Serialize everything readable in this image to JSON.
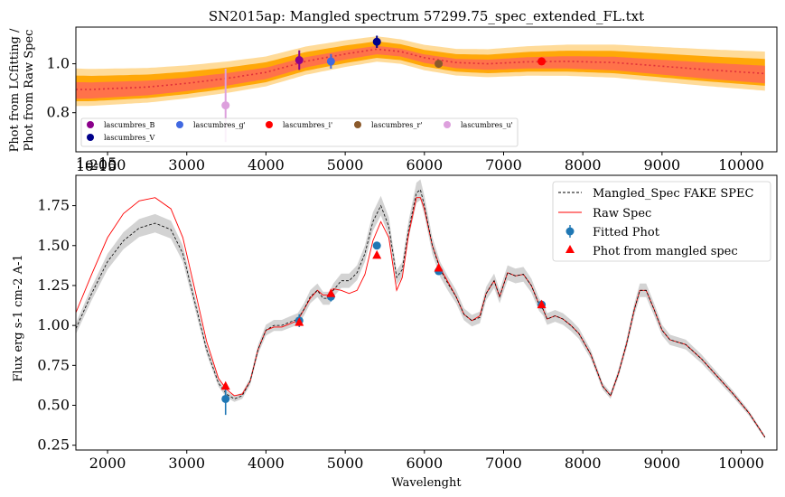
{
  "chart_data": [
    {
      "type": "line",
      "title": "SN2015ap: Mangled spectrum 57299.75_spec_extended_FL.txt",
      "ylabel_line1": "Phot from LCfitting /",
      "ylabel_line2": "Phot from Raw Spec",
      "xlim": [
        1600,
        10450
      ],
      "ylim": [
        0.64,
        1.15
      ],
      "xticks": [
        2000,
        3000,
        4000,
        5000,
        6000,
        7000,
        8000,
        9000,
        10000
      ],
      "yticks": [
        0.8,
        1.0
      ],
      "x_offset_label": "1e-15",
      "colors": {
        "band_outer": "#FFD27F",
        "band_mid": "#FFA500",
        "band_red": "#FF6060",
        "curve": "#E0303A"
      },
      "ratio_curve": {
        "x": [
          1800,
          2500,
          3000,
          3500,
          4000,
          4500,
          5000,
          5400,
          5700,
          6000,
          6400,
          6800,
          7300,
          7800,
          8400,
          9000,
          9600,
          10300
        ],
        "y": [
          0.895,
          0.905,
          0.92,
          0.94,
          0.965,
          1.01,
          1.04,
          1.06,
          1.05,
          1.025,
          1.005,
          1.0,
          1.008,
          1.01,
          1.005,
          0.99,
          0.975,
          0.96
        ]
      },
      "points": [
        {
          "name": "lascumbres_B",
          "color": "#8B008B",
          "x": 4420,
          "y": 1.015,
          "err": 0.04
        },
        {
          "name": "lascumbres_V",
          "color": "#00008B",
          "x": 5400,
          "y": 1.09,
          "err": 0.025
        },
        {
          "name": "lascumbres_g'",
          "color": "#4169E1",
          "x": 4820,
          "y": 1.01,
          "err": 0.03
        },
        {
          "name": "lascumbres_i'",
          "color": "#FF0000",
          "x": 7480,
          "y": 1.01,
          "err": 0.008
        },
        {
          "name": "lascumbres_r'",
          "color": "#8B5A2B",
          "x": 6180,
          "y": 1.0,
          "err": 0.008
        },
        {
          "name": "lascumbres_u'",
          "color": "#DDA0DD",
          "x": 3490,
          "y": 0.83,
          "err": 0.15
        }
      ]
    },
    {
      "type": "line",
      "xlabel": "Wavelenght",
      "ylabel": "Flux erg s-1 cm-2 A-1",
      "xlim": [
        1600,
        10450
      ],
      "ylim": [
        0.22,
        1.94
      ],
      "xticks": [
        2000,
        3000,
        4000,
        5000,
        6000,
        7000,
        8000,
        9000,
        10000
      ],
      "yticks": [
        0.25,
        0.5,
        0.75,
        1.0,
        1.25,
        1.5,
        1.75
      ],
      "x_offset_label": "1e-15",
      "legend": [
        "Mangled_Spec FAKE SPEC",
        "Raw Spec",
        "Fitted Phot",
        "Phot from mangled spec"
      ],
      "mangled": {
        "x": [
          1600,
          1800,
          2000,
          2200,
          2400,
          2600,
          2800,
          2950,
          3100,
          3250,
          3400,
          3500,
          3600,
          3700,
          3800,
          3900,
          4000,
          4100,
          4200,
          4300,
          4400,
          4480,
          4560,
          4650,
          4720,
          4800,
          4850,
          4950,
          5050,
          5150,
          5250,
          5350,
          5450,
          5550,
          5650,
          5720,
          5800,
          5900,
          5950,
          6000,
          6100,
          6200,
          6300,
          6400,
          6500,
          6600,
          6700,
          6780,
          6880,
          6950,
          7050,
          7150,
          7250,
          7350,
          7450,
          7500,
          7550,
          7650,
          7750,
          7850,
          7950,
          8100,
          8250,
          8350,
          8450,
          8550,
          8650,
          8720,
          8800,
          8900,
          9000,
          9100,
          9300,
          9500,
          9700,
          9900,
          10100,
          10300
        ],
        "y": [
          0.98,
          1.2,
          1.4,
          1.53,
          1.61,
          1.64,
          1.6,
          1.45,
          1.15,
          0.85,
          0.64,
          0.57,
          0.54,
          0.56,
          0.65,
          0.85,
          0.97,
          1.0,
          1.0,
          1.02,
          1.04,
          1.1,
          1.18,
          1.22,
          1.17,
          1.17,
          1.22,
          1.28,
          1.28,
          1.33,
          1.45,
          1.65,
          1.75,
          1.62,
          1.3,
          1.35,
          1.6,
          1.83,
          1.85,
          1.75,
          1.5,
          1.35,
          1.26,
          1.18,
          1.07,
          1.03,
          1.05,
          1.2,
          1.28,
          1.18,
          1.33,
          1.31,
          1.32,
          1.25,
          1.13,
          1.1,
          1.04,
          1.06,
          1.04,
          1.0,
          0.95,
          0.82,
          0.62,
          0.56,
          0.7,
          0.88,
          1.1,
          1.22,
          1.22,
          1.1,
          0.97,
          0.91,
          0.88,
          0.79,
          0.68,
          0.57,
          0.45,
          0.3
        ]
      },
      "raw": {
        "x": [
          1600,
          1800,
          2000,
          2200,
          2400,
          2600,
          2800,
          2950,
          3100,
          3250,
          3400,
          3500,
          3600,
          3700,
          3800,
          3900,
          4000,
          4100,
          4200,
          4300,
          4400,
          4480,
          4560,
          4650,
          4720,
          4800,
          4850,
          4950,
          5050,
          5150,
          5250,
          5350,
          5450,
          5550,
          5650,
          5720,
          5800,
          5900,
          5950,
          6000,
          6100,
          6200,
          6300,
          6400,
          6500,
          6600,
          6700,
          6780,
          6880,
          6950,
          7050,
          7150,
          7250,
          7350,
          7450,
          7500,
          7550,
          7650,
          7750,
          7850,
          7950,
          8100,
          8250,
          8350,
          8450,
          8550,
          8650,
          8720,
          8800,
          8900,
          9000,
          9100,
          9300,
          9500,
          9700,
          9900,
          10100,
          10300
        ],
        "y": [
          1.08,
          1.32,
          1.55,
          1.7,
          1.78,
          1.8,
          1.73,
          1.55,
          1.23,
          0.9,
          0.67,
          0.6,
          0.56,
          0.57,
          0.65,
          0.85,
          0.97,
          0.99,
          0.99,
          1.01,
          1.03,
          1.1,
          1.17,
          1.22,
          1.19,
          1.19,
          1.23,
          1.22,
          1.2,
          1.22,
          1.32,
          1.53,
          1.65,
          1.55,
          1.22,
          1.3,
          1.57,
          1.8,
          1.8,
          1.73,
          1.5,
          1.36,
          1.27,
          1.18,
          1.07,
          1.03,
          1.06,
          1.2,
          1.28,
          1.18,
          1.33,
          1.31,
          1.32,
          1.25,
          1.13,
          1.1,
          1.04,
          1.06,
          1.04,
          1.0,
          0.95,
          0.82,
          0.62,
          0.56,
          0.7,
          0.88,
          1.1,
          1.22,
          1.22,
          1.1,
          0.97,
          0.91,
          0.88,
          0.79,
          0.68,
          0.57,
          0.45,
          0.3
        ]
      },
      "fitted_phot": {
        "color": "#1F77B4",
        "points": [
          {
            "x": 3490,
            "y": 0.54,
            "err": 0.1
          },
          {
            "x": 4420,
            "y": 1.03,
            "err": 0.04
          },
          {
            "x": 4820,
            "y": 1.18,
            "err": 0.03
          },
          {
            "x": 5400,
            "y": 1.5,
            "err": 0.02
          },
          {
            "x": 6180,
            "y": 1.34,
            "err": 0.01
          },
          {
            "x": 7480,
            "y": 1.13,
            "err": 0.01
          }
        ]
      },
      "phot_mangled": {
        "color": "#FF0000",
        "points": [
          {
            "x": 3490,
            "y": 0.62
          },
          {
            "x": 4420,
            "y": 1.02
          },
          {
            "x": 4820,
            "y": 1.2
          },
          {
            "x": 5400,
            "y": 1.44
          },
          {
            "x": 6180,
            "y": 1.36
          },
          {
            "x": 7480,
            "y": 1.13
          }
        ]
      }
    }
  ]
}
